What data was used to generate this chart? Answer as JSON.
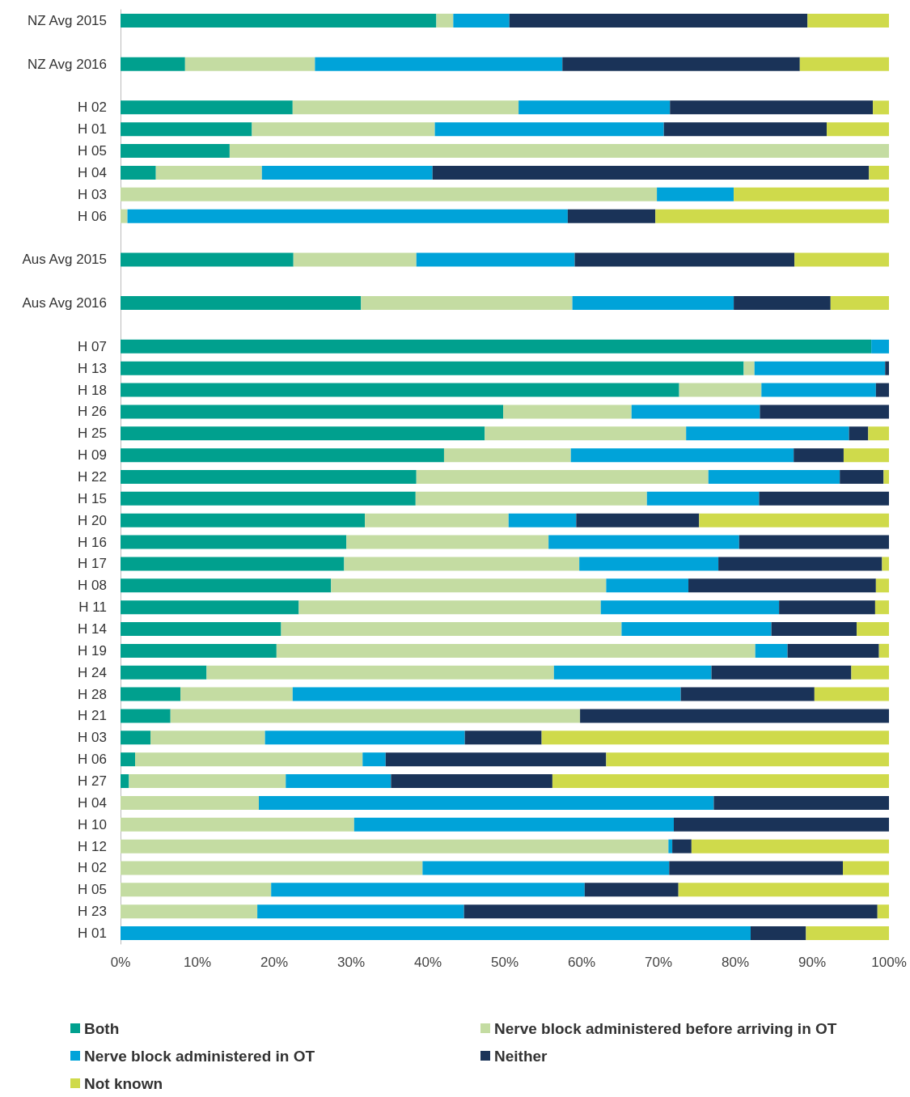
{
  "chart_data": {
    "type": "bar",
    "orientation": "horizontal",
    "stacked": true,
    "categories": [
      "NZ Avg 2015",
      null,
      "NZ Avg 2016",
      null,
      "H 02",
      "H 01",
      "H 05",
      "H 04",
      "H 03",
      "H 06",
      null,
      "Aus Avg 2015",
      null,
      "Aus Avg 2016",
      null,
      "H 07",
      "H 13",
      "H 18",
      "H 26",
      "H 25",
      "H 09",
      "H 22",
      "H 15",
      "H 20",
      "H 16",
      "H 17",
      "H 08",
      "H 11",
      "H 14",
      "H 19",
      "H 24",
      "H 28",
      "H 21",
      "H 03",
      "H 06",
      "H 27",
      "H 04",
      "H 10",
      "H 12",
      "H 02",
      "H 05",
      "H 23",
      "H 01"
    ],
    "series": [
      {
        "name": "Both",
        "color": "#00a08e",
        "values": [
          41.1,
          null,
          8.4,
          null,
          22.4,
          17.1,
          14.2,
          4.6,
          0,
          0,
          null,
          22.5,
          null,
          31.3,
          null,
          97.7,
          81.1,
          72.7,
          49.8,
          47.4,
          42.1,
          38.5,
          38.4,
          31.8,
          29.4,
          29.1,
          27.4,
          23.2,
          20.9,
          20.3,
          11.2,
          7.8,
          6.5,
          3.9,
          1.9,
          1.1,
          0,
          0,
          0,
          0,
          0,
          0,
          0
        ]
      },
      {
        "name": "Nerve block administered before arriving in OT",
        "color": "#c4dca2",
        "values": [
          2.2,
          null,
          16.9,
          null,
          29.4,
          23.8,
          85.8,
          13.8,
          69.8,
          0.9,
          null,
          16,
          null,
          27.5,
          null,
          0,
          1.4,
          10.7,
          16.7,
          26.2,
          16.5,
          38,
          30.1,
          18.7,
          26.3,
          30.6,
          35.8,
          39.3,
          44.3,
          62.3,
          45.2,
          14.6,
          53.3,
          14.9,
          29.6,
          20.4,
          18,
          30.4,
          71.3,
          39.3,
          19.6,
          17.8,
          0
        ]
      },
      {
        "name": "Nerve block administered in OT",
        "color": "#00a3d9",
        "values": [
          7.3,
          null,
          32.2,
          null,
          19.7,
          29.8,
          0,
          22.2,
          10,
          57.3,
          null,
          20.6,
          null,
          21,
          null,
          2.3,
          17,
          14.9,
          16.7,
          21.2,
          29,
          17.1,
          14.6,
          8.8,
          24.8,
          18.1,
          10.7,
          23.2,
          19.5,
          4.2,
          20.5,
          50.5,
          0,
          26,
          3,
          13.7,
          59.2,
          41.6,
          0.5,
          32.1,
          40.8,
          26.9,
          82
        ]
      },
      {
        "name": "Neither",
        "color": "#1a3358",
        "values": [
          38.8,
          null,
          30.9,
          null,
          26.4,
          21.2,
          0,
          56.8,
          0,
          11.4,
          null,
          28.6,
          null,
          12.6,
          null,
          0,
          0.5,
          1.7,
          16.8,
          2.5,
          6.5,
          5.7,
          16.9,
          16,
          19.5,
          21.3,
          24.4,
          12.5,
          11.1,
          11.9,
          18.2,
          17.4,
          40.2,
          10,
          28.7,
          21,
          22.8,
          28,
          2.5,
          22.6,
          12.2,
          53.8,
          7.2
        ]
      },
      {
        "name": "Not known",
        "color": "#cfda4b",
        "values": [
          10.6,
          null,
          11.6,
          null,
          2.1,
          8.1,
          0,
          2.6,
          20.2,
          30.4,
          null,
          12.3,
          null,
          7.6,
          null,
          0,
          0,
          0,
          0,
          2.7,
          5.9,
          0.7,
          0,
          24.7,
          0,
          0.9,
          1.7,
          1.8,
          4.2,
          1.3,
          4.9,
          9.7,
          0,
          45.2,
          36.8,
          43.8,
          0,
          0,
          25.7,
          6,
          27.4,
          1.5,
          10.8
        ]
      }
    ],
    "xlim": [
      0,
      100
    ],
    "xticks": [
      {
        "value": 0,
        "label": "0%"
      },
      {
        "value": 10,
        "label": "10%"
      },
      {
        "value": 20,
        "label": "20%"
      },
      {
        "value": 30,
        "label": "30%"
      },
      {
        "value": 40,
        "label": "40%"
      },
      {
        "value": 50,
        "label": "50%"
      },
      {
        "value": 60,
        "label": "60%"
      },
      {
        "value": 70,
        "label": "70%"
      },
      {
        "value": 80,
        "label": "80%"
      },
      {
        "value": 90,
        "label": "90%"
      },
      {
        "value": 100,
        "label": "100%"
      }
    ],
    "grid": false,
    "legend": "bottom"
  }
}
